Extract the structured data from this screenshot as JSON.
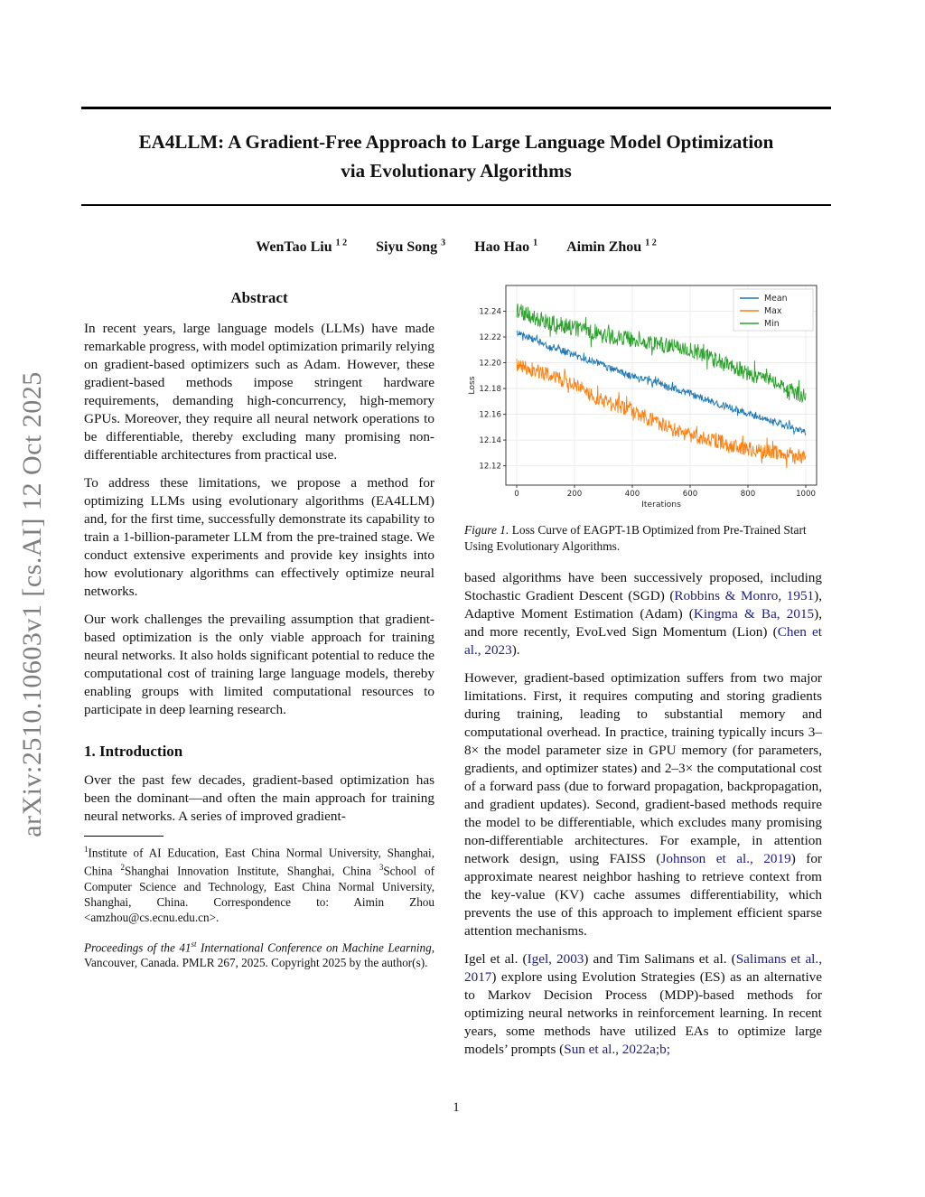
{
  "arxiv_sidebar": {
    "text": "arXiv:2510.10603v1  [cs.AI]  12 Oct 2025"
  },
  "header": {
    "title_line1": "EA4LLM: A Gradient-Free Approach to Large Language Model Optimization",
    "title_line2": "via Evolutionary Algorithms"
  },
  "authors": [
    {
      "name": "WenTao Liu",
      "sup": "1 2"
    },
    {
      "name": "Siyu Song",
      "sup": "3"
    },
    {
      "name": "Hao Hao",
      "sup": "1"
    },
    {
      "name": "Aimin Zhou",
      "sup": "1 2"
    }
  ],
  "abstract": {
    "heading": "Abstract",
    "paragraphs": [
      "In recent years, large language models (LLMs) have made remarkable progress, with model optimization primarily relying on gradient-based optimizers such as Adam. However, these gradient-based methods impose stringent hardware requirements, demanding high-concurrency, high-memory GPUs. Moreover, they require all neural network operations to be differentiable, thereby excluding many promising non-differentiable architectures from practical use.",
      "To address these limitations, we propose a method for optimizing LLMs using evolutionary algorithms (EA4LLM) and, for the first time, successfully demonstrate its capability to train a 1-billion-parameter LLM from the pre-trained stage. We conduct extensive experiments and provide key insights into how evolutionary algorithms can effectively optimize neural networks.",
      "Our work challenges the prevailing assumption that gradient-based optimization is the only viable approach for training neural networks. It also holds significant potential to reduce the computational cost of training large language models, thereby enabling groups with limited computational resources to participate in deep learning research."
    ]
  },
  "introduction": {
    "heading": "1. Introduction",
    "paragraph": "Over the past few decades, gradient-based optimization has been the dominant—and often the main approach for training neural networks. A series of improved gradient-"
  },
  "footnotes": {
    "affil_segments": [
      {
        "t": "1",
        "s": "sup"
      },
      {
        "t": "Institute of AI Education, East China Normal University, Shanghai, China ",
        "s": "plain"
      },
      {
        "t": "2",
        "s": "sup"
      },
      {
        "t": "Shanghai Innovation Institute, Shanghai, China ",
        "s": "plain"
      },
      {
        "t": "3",
        "s": "sup"
      },
      {
        "t": "School of Computer Science and Technology, East China Normal University, Shanghai, China. Correspondence to: Aimin Zhou <amzhou@cs.ecnu.edu.cn>.",
        "s": "plain"
      }
    ],
    "proceedings_segments": [
      {
        "t": "Proceedings of the 41",
        "s": "it"
      },
      {
        "t": "st",
        "s": "itsup"
      },
      {
        "t": " International Conference on Machine Learning",
        "s": "it"
      },
      {
        "t": ", Vancouver, Canada. PMLR 267, 2025. Copyright 2025 by the author(s).",
        "s": "plain"
      }
    ]
  },
  "figure": {
    "caption_label": "Figure 1.",
    "caption_text": " Loss Curve of EAGPT-1B Optimized from Pre-Trained Start Using Evolutionary Algorithms."
  },
  "right_column": {
    "para1": [
      {
        "t": "based algorithms have been successively proposed, including Stochastic Gradient Descent (SGD) (",
        "s": "plain"
      },
      {
        "t": "Robbins & Monro, 1951",
        "s": "link"
      },
      {
        "t": "), Adaptive Moment Estimation (Adam) (",
        "s": "plain"
      },
      {
        "t": "Kingma & Ba, 2015",
        "s": "link"
      },
      {
        "t": "), and more recently, EvoLved Sign Momentum (Lion) (",
        "s": "plain"
      },
      {
        "t": "Chen et al., 2023",
        "s": "link"
      },
      {
        "t": ").",
        "s": "plain"
      }
    ],
    "para2": [
      {
        "t": "However, gradient-based optimization suffers from two major limitations.  First, it requires computing and storing gradients during training, leading to substantial memory and computational overhead. In practice, training typically incurs 3–8× the model parameter size in GPU memory (for parameters, gradients, and optimizer states) and 2–3× the computational cost of a forward pass (due to forward propagation, backpropagation, and gradient updates).  Second, gradient-based methods require the model to be differentiable, which excludes many promising non-differentiable architectures.  For example, in attention network design, using FAISS  (",
        "s": "plain"
      },
      {
        "t": "Johnson et al., 2019",
        "s": "link"
      },
      {
        "t": ") for approximate nearest neighbor hashing to retrieve context from the key-value (KV) cache assumes differentiability, which prevents the use of this approach to implement efficient sparse attention mechanisms.",
        "s": "plain"
      }
    ],
    "para3": [
      {
        "t": "Igel et al. (",
        "s": "plain"
      },
      {
        "t": "Igel, 2003",
        "s": "link"
      },
      {
        "t": ") and Tim Salimans et al. (",
        "s": "plain"
      },
      {
        "t": "Salimans et al., 2017",
        "s": "link"
      },
      {
        "t": ") explore using Evolution Strategies (ES) as an alternative to Markov Decision Process (MDP)-based methods for optimizing neural networks in reinforcement learning. In recent years, some methods have utilized EAs to optimize large models’ prompts (",
        "s": "plain"
      },
      {
        "t": "Sun et al., 2022a;b;",
        "s": "link"
      }
    ]
  },
  "page_number": "1",
  "chart_data": {
    "type": "line",
    "title": "",
    "xlabel": "Iterations",
    "ylabel": "Loss",
    "xlim": [
      0,
      1000
    ],
    "ylim": [
      12.105,
      12.26
    ],
    "xticks": [
      0,
      200,
      400,
      600,
      800,
      1000
    ],
    "yticks": [
      12.12,
      12.14,
      12.16,
      12.18,
      12.2,
      12.22,
      12.24
    ],
    "grid": true,
    "legend_position": "upper right",
    "anchor_x": [
      0,
      100,
      200,
      300,
      400,
      500,
      600,
      700,
      800,
      900,
      1000
    ],
    "series": [
      {
        "name": "Mean",
        "color": "#1f77b4",
        "noise": 0.0028,
        "values": [
          12.224,
          12.214,
          12.206,
          12.198,
          12.189,
          12.183,
          12.176,
          12.168,
          12.161,
          12.154,
          12.146
        ]
      },
      {
        "name": "Max",
        "color": "#ff7f0e",
        "noise": 0.0058,
        "values": [
          12.199,
          12.191,
          12.183,
          12.17,
          12.163,
          12.152,
          12.144,
          12.139,
          12.133,
          12.13,
          12.127
        ]
      },
      {
        "name": "Min",
        "color": "#2ca02c",
        "noise": 0.0062,
        "values": [
          12.241,
          12.232,
          12.227,
          12.221,
          12.218,
          12.214,
          12.21,
          12.201,
          12.192,
          12.184,
          12.173
        ]
      }
    ]
  }
}
